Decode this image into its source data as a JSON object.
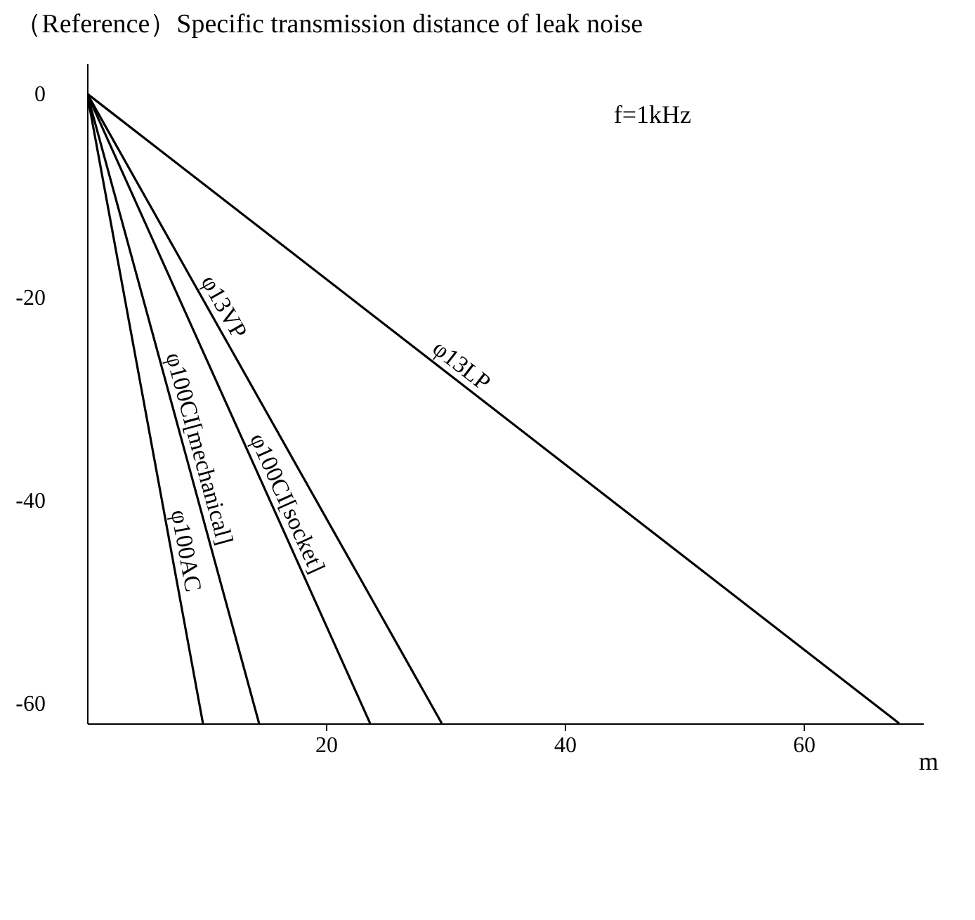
{
  "chart_data": {
    "type": "line",
    "title": "（Reference）Specific transmission distance of leak noise",
    "xlabel": "m",
    "annotations": [
      "f=1kHz"
    ],
    "xlim": [
      0,
      70
    ],
    "ylim": [
      -62,
      3
    ],
    "xticks": [
      20,
      40,
      60
    ],
    "yticks": [
      0,
      -20,
      -40,
      -60
    ],
    "grid": false,
    "series": [
      {
        "name": "φ100AC",
        "color": "#000000",
        "x": [
          0,
          9.7
        ],
        "values": [
          0,
          -62
        ]
      },
      {
        "name": "φ100CI[mechanical]",
        "color": "#000000",
        "x": [
          0,
          14.4
        ],
        "values": [
          0,
          -62
        ]
      },
      {
        "name": "φ100CI[socket]",
        "color": "#000000",
        "x": [
          0,
          23.7
        ],
        "values": [
          0,
          -62
        ]
      },
      {
        "name": "φ13VP",
        "color": "#000000",
        "x": [
          0,
          29.7
        ],
        "values": [
          0,
          -62
        ]
      },
      {
        "name": "φ13LP",
        "color": "#000000",
        "x": [
          0,
          68
        ],
        "values": [
          0,
          -62
        ]
      }
    ]
  }
}
